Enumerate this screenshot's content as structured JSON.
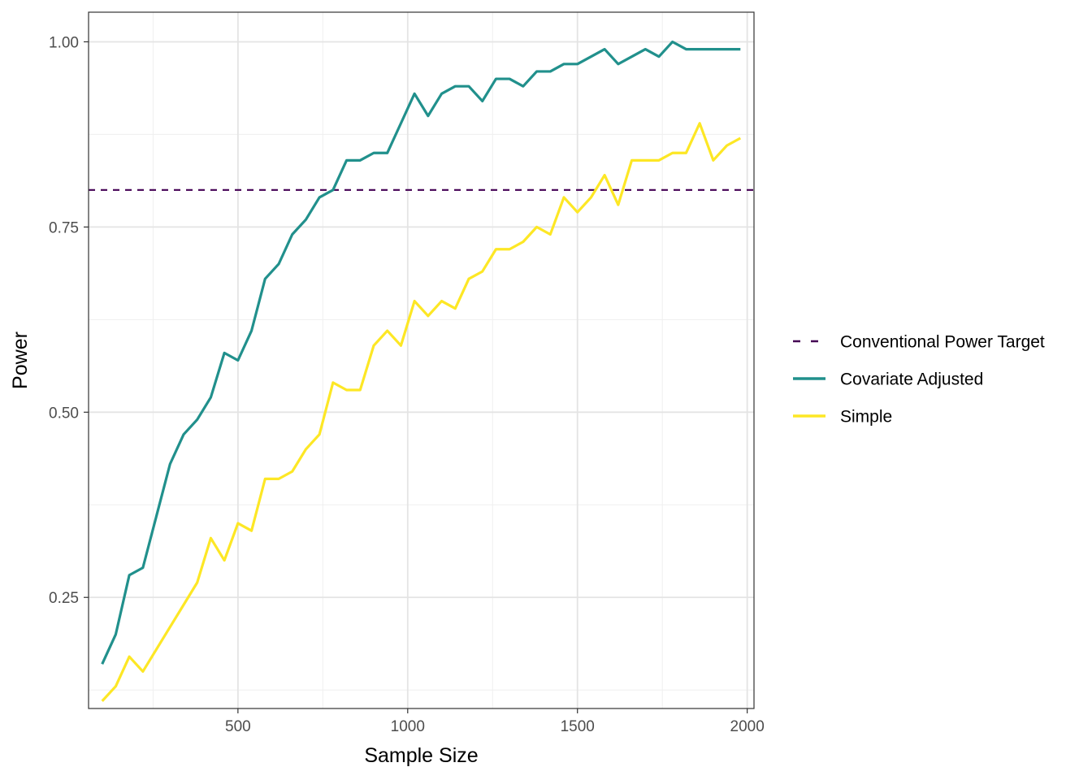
{
  "chart_data": {
    "type": "line",
    "title": "",
    "xlabel": "Sample Size",
    "ylabel": "Power",
    "xlim": [
      60,
      2020
    ],
    "ylim": [
      0.1,
      1.04
    ],
    "x_ticks": [
      500,
      1000,
      1500,
      2000
    ],
    "x_tick_labels": [
      "500",
      "1000",
      "1500",
      "2000"
    ],
    "y_ticks": [
      0.25,
      0.5,
      0.75,
      1.0
    ],
    "y_tick_labels": [
      "0.25",
      "0.50",
      "0.75",
      "1.00"
    ],
    "y_minor_ticks": [
      0.125,
      0.375,
      0.625,
      0.875
    ],
    "grid": true,
    "legend_position": "right",
    "reference_line": {
      "name": "Conventional Power Target",
      "y": 0.8,
      "style": "dashed",
      "color": "#440154"
    },
    "x": [
      100,
      140,
      180,
      220,
      260,
      300,
      340,
      380,
      420,
      460,
      500,
      540,
      580,
      620,
      660,
      700,
      740,
      780,
      820,
      860,
      900,
      940,
      980,
      1020,
      1060,
      1100,
      1140,
      1180,
      1220,
      1260,
      1300,
      1340,
      1380,
      1420,
      1460,
      1500,
      1540,
      1580,
      1620,
      1660,
      1700,
      1740,
      1780,
      1820,
      1860,
      1900,
      1940,
      1980
    ],
    "series": [
      {
        "name": "Covariate Adjusted",
        "color": "#21908C",
        "values": [
          0.16,
          0.2,
          0.28,
          0.29,
          0.36,
          0.43,
          0.47,
          0.49,
          0.52,
          0.58,
          0.57,
          0.61,
          0.68,
          0.7,
          0.74,
          0.76,
          0.79,
          0.8,
          0.84,
          0.84,
          0.85,
          0.85,
          0.89,
          0.93,
          0.9,
          0.93,
          0.94,
          0.94,
          0.92,
          0.95,
          0.95,
          0.94,
          0.96,
          0.96,
          0.97,
          0.97,
          0.98,
          0.99,
          0.97,
          0.98,
          0.99,
          0.98,
          1.0,
          0.99,
          0.99,
          0.99,
          0.99,
          0.99
        ]
      },
      {
        "name": "Simple",
        "color": "#FDE725",
        "values": [
          0.11,
          0.13,
          0.17,
          0.15,
          0.18,
          0.21,
          0.24,
          0.27,
          0.33,
          0.3,
          0.35,
          0.34,
          0.41,
          0.41,
          0.42,
          0.45,
          0.47,
          0.54,
          0.53,
          0.53,
          0.59,
          0.61,
          0.59,
          0.65,
          0.63,
          0.65,
          0.64,
          0.68,
          0.69,
          0.72,
          0.72,
          0.73,
          0.75,
          0.74,
          0.79,
          0.77,
          0.79,
          0.82,
          0.78,
          0.84,
          0.84,
          0.84,
          0.85,
          0.85,
          0.89,
          0.84,
          0.86,
          0.87
        ]
      }
    ],
    "legend_entries": [
      "Conventional Power Target",
      "Covariate Adjusted",
      "Simple"
    ]
  }
}
